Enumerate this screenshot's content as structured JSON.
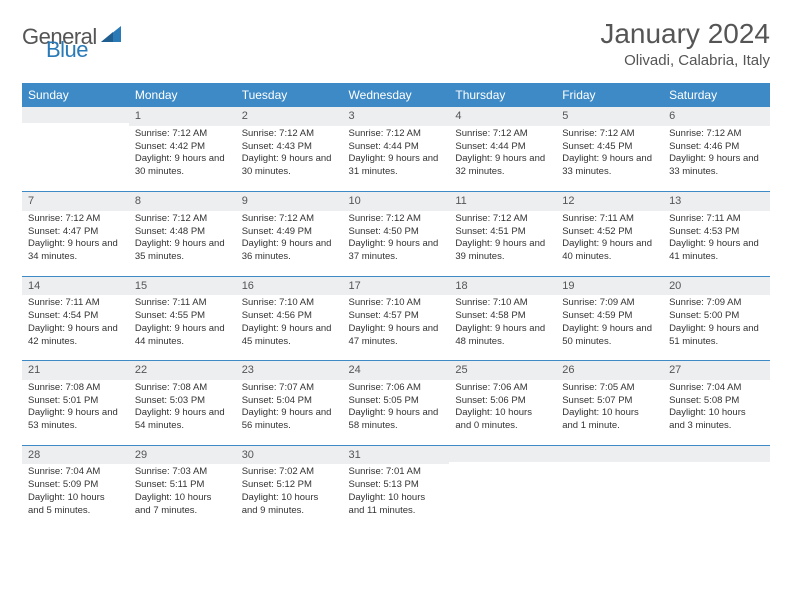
{
  "logo": {
    "word1": "General",
    "word2": "Blue"
  },
  "title": "January 2024",
  "location": "Olivadi, Calabria, Italy",
  "colors": {
    "header_bg": "#3d8ac7",
    "header_fg": "#ffffff",
    "daynum_bg": "#eceef0",
    "sep": "#3d8ac7",
    "text": "#333333",
    "logo_gray": "#555555",
    "logo_blue": "#2a7ab8"
  },
  "day_headers": [
    "Sunday",
    "Monday",
    "Tuesday",
    "Wednesday",
    "Thursday",
    "Friday",
    "Saturday"
  ],
  "weeks": [
    [
      {
        "n": "",
        "lines": []
      },
      {
        "n": "1",
        "lines": [
          "Sunrise: 7:12 AM",
          "Sunset: 4:42 PM",
          "Daylight: 9 hours and 30 minutes."
        ]
      },
      {
        "n": "2",
        "lines": [
          "Sunrise: 7:12 AM",
          "Sunset: 4:43 PM",
          "Daylight: 9 hours and 30 minutes."
        ]
      },
      {
        "n": "3",
        "lines": [
          "Sunrise: 7:12 AM",
          "Sunset: 4:44 PM",
          "Daylight: 9 hours and 31 minutes."
        ]
      },
      {
        "n": "4",
        "lines": [
          "Sunrise: 7:12 AM",
          "Sunset: 4:44 PM",
          "Daylight: 9 hours and 32 minutes."
        ]
      },
      {
        "n": "5",
        "lines": [
          "Sunrise: 7:12 AM",
          "Sunset: 4:45 PM",
          "Daylight: 9 hours and 33 minutes."
        ]
      },
      {
        "n": "6",
        "lines": [
          "Sunrise: 7:12 AM",
          "Sunset: 4:46 PM",
          "Daylight: 9 hours and 33 minutes."
        ]
      }
    ],
    [
      {
        "n": "7",
        "lines": [
          "Sunrise: 7:12 AM",
          "Sunset: 4:47 PM",
          "Daylight: 9 hours and 34 minutes."
        ]
      },
      {
        "n": "8",
        "lines": [
          "Sunrise: 7:12 AM",
          "Sunset: 4:48 PM",
          "Daylight: 9 hours and 35 minutes."
        ]
      },
      {
        "n": "9",
        "lines": [
          "Sunrise: 7:12 AM",
          "Sunset: 4:49 PM",
          "Daylight: 9 hours and 36 minutes."
        ]
      },
      {
        "n": "10",
        "lines": [
          "Sunrise: 7:12 AM",
          "Sunset: 4:50 PM",
          "Daylight: 9 hours and 37 minutes."
        ]
      },
      {
        "n": "11",
        "lines": [
          "Sunrise: 7:12 AM",
          "Sunset: 4:51 PM",
          "Daylight: 9 hours and 39 minutes."
        ]
      },
      {
        "n": "12",
        "lines": [
          "Sunrise: 7:11 AM",
          "Sunset: 4:52 PM",
          "Daylight: 9 hours and 40 minutes."
        ]
      },
      {
        "n": "13",
        "lines": [
          "Sunrise: 7:11 AM",
          "Sunset: 4:53 PM",
          "Daylight: 9 hours and 41 minutes."
        ]
      }
    ],
    [
      {
        "n": "14",
        "lines": [
          "Sunrise: 7:11 AM",
          "Sunset: 4:54 PM",
          "Daylight: 9 hours and 42 minutes."
        ]
      },
      {
        "n": "15",
        "lines": [
          "Sunrise: 7:11 AM",
          "Sunset: 4:55 PM",
          "Daylight: 9 hours and 44 minutes."
        ]
      },
      {
        "n": "16",
        "lines": [
          "Sunrise: 7:10 AM",
          "Sunset: 4:56 PM",
          "Daylight: 9 hours and 45 minutes."
        ]
      },
      {
        "n": "17",
        "lines": [
          "Sunrise: 7:10 AM",
          "Sunset: 4:57 PM",
          "Daylight: 9 hours and 47 minutes."
        ]
      },
      {
        "n": "18",
        "lines": [
          "Sunrise: 7:10 AM",
          "Sunset: 4:58 PM",
          "Daylight: 9 hours and 48 minutes."
        ]
      },
      {
        "n": "19",
        "lines": [
          "Sunrise: 7:09 AM",
          "Sunset: 4:59 PM",
          "Daylight: 9 hours and 50 minutes."
        ]
      },
      {
        "n": "20",
        "lines": [
          "Sunrise: 7:09 AM",
          "Sunset: 5:00 PM",
          "Daylight: 9 hours and 51 minutes."
        ]
      }
    ],
    [
      {
        "n": "21",
        "lines": [
          "Sunrise: 7:08 AM",
          "Sunset: 5:01 PM",
          "Daylight: 9 hours and 53 minutes."
        ]
      },
      {
        "n": "22",
        "lines": [
          "Sunrise: 7:08 AM",
          "Sunset: 5:03 PM",
          "Daylight: 9 hours and 54 minutes."
        ]
      },
      {
        "n": "23",
        "lines": [
          "Sunrise: 7:07 AM",
          "Sunset: 5:04 PM",
          "Daylight: 9 hours and 56 minutes."
        ]
      },
      {
        "n": "24",
        "lines": [
          "Sunrise: 7:06 AM",
          "Sunset: 5:05 PM",
          "Daylight: 9 hours and 58 minutes."
        ]
      },
      {
        "n": "25",
        "lines": [
          "Sunrise: 7:06 AM",
          "Sunset: 5:06 PM",
          "Daylight: 10 hours and 0 minutes."
        ]
      },
      {
        "n": "26",
        "lines": [
          "Sunrise: 7:05 AM",
          "Sunset: 5:07 PM",
          "Daylight: 10 hours and 1 minute."
        ]
      },
      {
        "n": "27",
        "lines": [
          "Sunrise: 7:04 AM",
          "Sunset: 5:08 PM",
          "Daylight: 10 hours and 3 minutes."
        ]
      }
    ],
    [
      {
        "n": "28",
        "lines": [
          "Sunrise: 7:04 AM",
          "Sunset: 5:09 PM",
          "Daylight: 10 hours and 5 minutes."
        ]
      },
      {
        "n": "29",
        "lines": [
          "Sunrise: 7:03 AM",
          "Sunset: 5:11 PM",
          "Daylight: 10 hours and 7 minutes."
        ]
      },
      {
        "n": "30",
        "lines": [
          "Sunrise: 7:02 AM",
          "Sunset: 5:12 PM",
          "Daylight: 10 hours and 9 minutes."
        ]
      },
      {
        "n": "31",
        "lines": [
          "Sunrise: 7:01 AM",
          "Sunset: 5:13 PM",
          "Daylight: 10 hours and 11 minutes."
        ]
      },
      {
        "n": "",
        "lines": []
      },
      {
        "n": "",
        "lines": []
      },
      {
        "n": "",
        "lines": []
      }
    ]
  ]
}
